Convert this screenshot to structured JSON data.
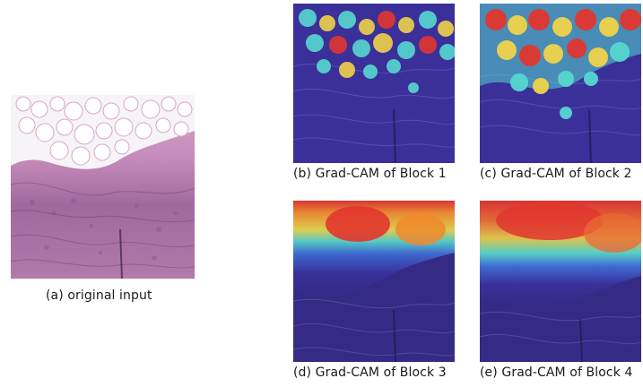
{
  "figure": {
    "panels": [
      {
        "id": "a",
        "caption": "(a) original input"
      },
      {
        "id": "b",
        "caption": "(b) Grad-CAM of Block 1"
      },
      {
        "id": "c",
        "caption": "(c) Grad-CAM of Block 2"
      },
      {
        "id": "d",
        "caption": "(d) Grad-CAM of Block 3"
      },
      {
        "id": "e",
        "caption": "(e) Grad-CAM of Block 4"
      }
    ]
  },
  "colors": {
    "tissue_pink": "#c98db8",
    "tissue_purple": "#6d4f9a",
    "fat_white": "#f6f3f6",
    "heat_low": "#3b2f9a",
    "heat_mid": "#56d8d0",
    "heat_high": "#e2362f"
  }
}
